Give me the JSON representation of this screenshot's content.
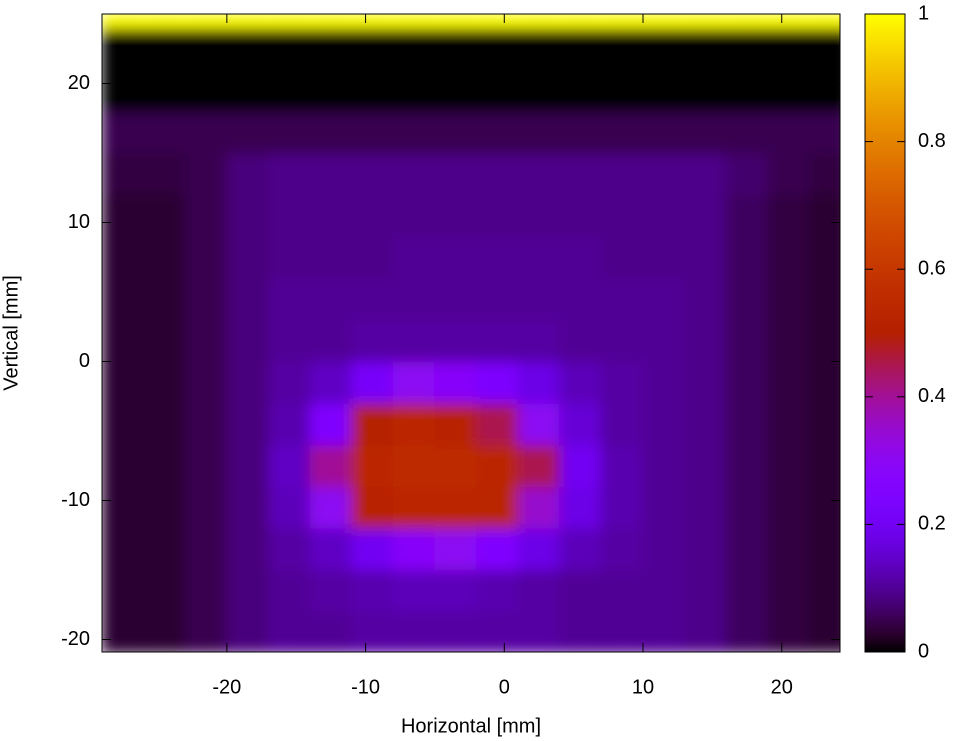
{
  "chart_data": {
    "type": "heatmap",
    "xlabel": "Horizontal [mm]",
    "ylabel": "Vertical [mm]",
    "xlim": [
      -29,
      24.2
    ],
    "ylim": [
      -20.9,
      25
    ],
    "xticks": [
      -20,
      -10,
      0,
      10,
      20
    ],
    "yticks": [
      -20,
      -10,
      0,
      10,
      20
    ],
    "zlim": [
      0,
      1
    ],
    "zticks": [
      0,
      0.2,
      0.4,
      0.6,
      0.8,
      1
    ],
    "xbins": [
      -29,
      -26,
      -23,
      -20,
      -17,
      -14,
      -11,
      -8,
      -5,
      -2,
      1,
      4,
      7,
      10,
      13,
      16,
      19,
      22,
      25
    ],
    "ybins": [
      -21,
      -18,
      -15,
      -12,
      -9,
      -6,
      -3,
      0,
      3,
      6,
      9,
      12,
      15,
      18,
      21,
      24,
      25
    ],
    "z": [
      [
        0.03,
        0.03,
        0.05,
        0.08,
        0.1,
        0.1,
        0.11,
        0.11,
        0.11,
        0.11,
        0.11,
        0.1,
        0.1,
        0.1,
        0.09,
        0.06,
        0.04,
        0.03
      ],
      [
        0.03,
        0.03,
        0.05,
        0.08,
        0.1,
        0.11,
        0.12,
        0.13,
        0.13,
        0.12,
        0.11,
        0.1,
        0.1,
        0.1,
        0.09,
        0.06,
        0.04,
        0.03
      ],
      [
        0.03,
        0.03,
        0.05,
        0.08,
        0.11,
        0.14,
        0.2,
        0.28,
        0.3,
        0.25,
        0.18,
        0.13,
        0.11,
        0.1,
        0.09,
        0.06,
        0.04,
        0.03
      ],
      [
        0.03,
        0.03,
        0.05,
        0.08,
        0.13,
        0.3,
        0.52,
        0.54,
        0.54,
        0.53,
        0.35,
        0.18,
        0.12,
        0.1,
        0.09,
        0.06,
        0.04,
        0.03
      ],
      [
        0.03,
        0.03,
        0.05,
        0.08,
        0.14,
        0.4,
        0.54,
        0.55,
        0.55,
        0.54,
        0.45,
        0.2,
        0.12,
        0.1,
        0.09,
        0.06,
        0.04,
        0.03
      ],
      [
        0.03,
        0.03,
        0.05,
        0.08,
        0.12,
        0.25,
        0.5,
        0.54,
        0.52,
        0.45,
        0.3,
        0.16,
        0.11,
        0.1,
        0.09,
        0.06,
        0.04,
        0.03
      ],
      [
        0.03,
        0.03,
        0.05,
        0.08,
        0.11,
        0.14,
        0.22,
        0.3,
        0.28,
        0.24,
        0.18,
        0.13,
        0.11,
        0.1,
        0.09,
        0.06,
        0.04,
        0.03
      ],
      [
        0.03,
        0.03,
        0.05,
        0.08,
        0.1,
        0.1,
        0.11,
        0.11,
        0.11,
        0.11,
        0.11,
        0.1,
        0.1,
        0.1,
        0.09,
        0.06,
        0.04,
        0.03
      ],
      [
        0.03,
        0.03,
        0.05,
        0.08,
        0.1,
        0.1,
        0.1,
        0.1,
        0.1,
        0.1,
        0.1,
        0.1,
        0.1,
        0.1,
        0.09,
        0.06,
        0.04,
        0.03
      ],
      [
        0.03,
        0.03,
        0.05,
        0.08,
        0.09,
        0.09,
        0.09,
        0.1,
        0.1,
        0.1,
        0.1,
        0.1,
        0.09,
        0.09,
        0.09,
        0.06,
        0.04,
        0.03
      ],
      [
        0.03,
        0.03,
        0.05,
        0.08,
        0.09,
        0.09,
        0.09,
        0.09,
        0.09,
        0.09,
        0.09,
        0.09,
        0.09,
        0.09,
        0.09,
        0.06,
        0.04,
        0.03
      ],
      [
        0.04,
        0.04,
        0.05,
        0.08,
        0.09,
        0.09,
        0.09,
        0.09,
        0.09,
        0.09,
        0.09,
        0.09,
        0.09,
        0.09,
        0.09,
        0.07,
        0.05,
        0.04
      ],
      [
        0.05,
        0.05,
        0.05,
        0.05,
        0.05,
        0.05,
        0.05,
        0.05,
        0.05,
        0.05,
        0.05,
        0.05,
        0.05,
        0.05,
        0.05,
        0.05,
        0.05,
        0.05
      ],
      [
        0,
        0,
        0,
        0,
        0,
        0,
        0,
        0,
        0,
        0,
        0,
        0,
        0,
        0,
        0,
        0,
        0,
        0
      ],
      [
        0,
        0,
        0,
        0,
        0,
        0,
        0,
        0,
        0,
        0,
        0,
        0,
        0,
        0,
        0,
        0,
        0,
        0
      ],
      [
        1,
        1,
        1,
        1,
        1,
        1,
        1,
        1,
        1,
        1,
        1,
        1,
        1,
        1,
        1,
        1,
        1,
        1
      ]
    ]
  }
}
